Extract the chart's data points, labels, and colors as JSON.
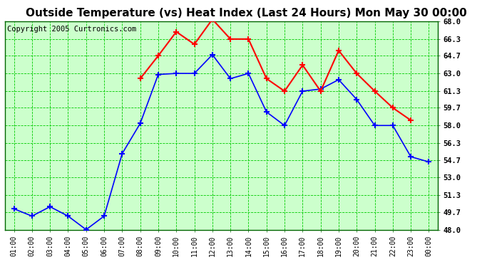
{
  "title": "Outside Temperature (vs) Heat Index (Last 24 Hours) Mon May 30 00:00",
  "copyright": "Copyright 2005 Curtronics.com",
  "x_labels": [
    "01:00",
    "02:00",
    "03:00",
    "04:00",
    "05:00",
    "06:00",
    "07:00",
    "08:00",
    "09:00",
    "10:00",
    "11:00",
    "12:00",
    "13:00",
    "14:00",
    "15:00",
    "16:00",
    "17:00",
    "18:00",
    "19:00",
    "20:00",
    "21:00",
    "22:00",
    "23:00",
    "00:00"
  ],
  "blue_data": [
    50.0,
    49.3,
    50.2,
    49.3,
    48.0,
    49.3,
    55.3,
    58.2,
    62.9,
    63.0,
    63.0,
    64.8,
    62.5,
    63.0,
    59.3,
    58.0,
    61.3,
    61.5,
    62.4,
    60.5,
    58.0,
    58.0,
    55.0,
    54.5
  ],
  "red_data": [
    null,
    null,
    null,
    null,
    null,
    null,
    null,
    62.5,
    64.7,
    67.0,
    65.8,
    68.2,
    66.3,
    66.3,
    62.5,
    61.3,
    63.8,
    61.3,
    65.2,
    63.0,
    61.3,
    59.7,
    58.5,
    null
  ],
  "ylim": [
    48.0,
    68.0
  ],
  "yticks": [
    48.0,
    49.7,
    51.3,
    53.0,
    54.7,
    56.3,
    58.0,
    59.7,
    61.3,
    63.0,
    64.7,
    66.3,
    68.0
  ],
  "bg_color": "#ffffff",
  "plot_bg_color": "#ccffcc",
  "grid_color": "#00cc00",
  "blue_color": "#0000ff",
  "red_color": "#ff0000",
  "title_fontsize": 11,
  "copyright_fontsize": 7.5
}
